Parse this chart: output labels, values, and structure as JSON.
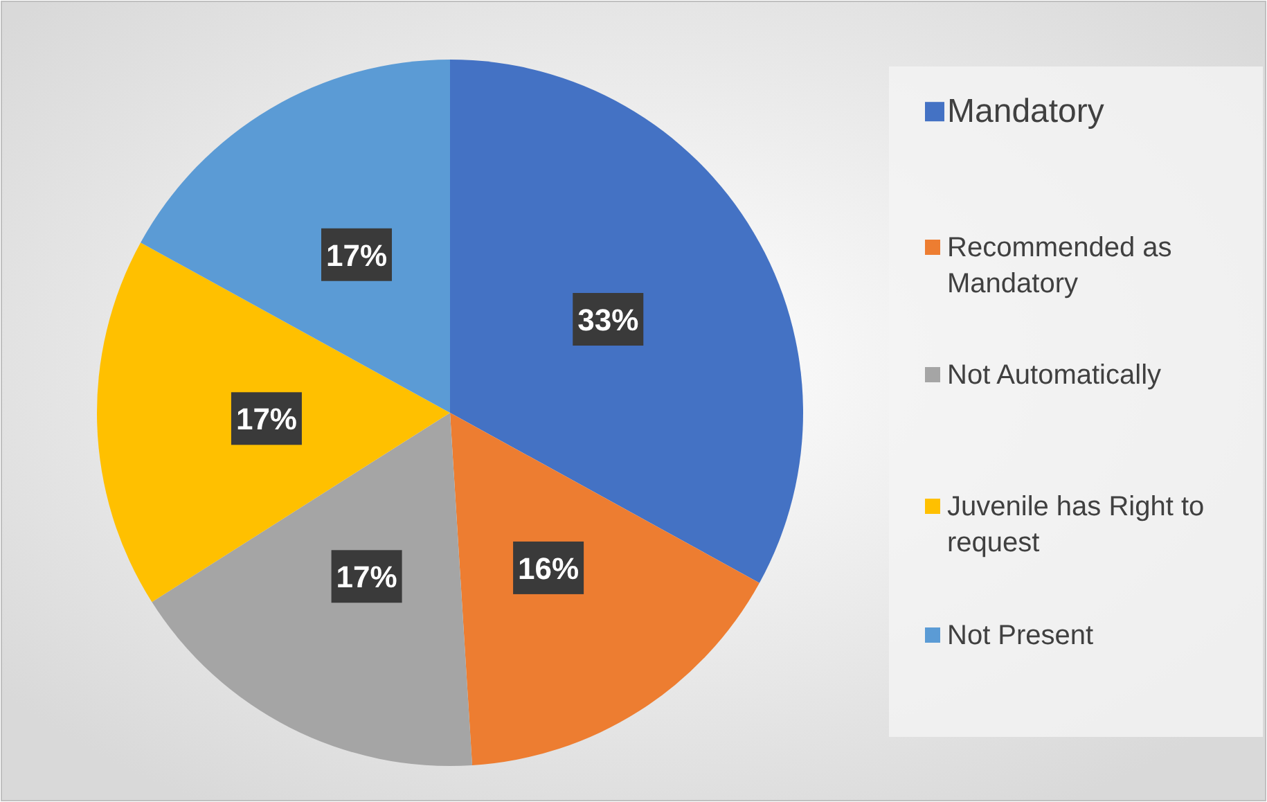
{
  "chart_data": {
    "type": "pie",
    "categories": [
      "Mandatory",
      "Recommended as Mandatory",
      "Not Automatically",
      "Juvenile has Right to request",
      "Not Present"
    ],
    "values": [
      33,
      16,
      17,
      17,
      17
    ],
    "colors": [
      "#4472c4",
      "#ed7d31",
      "#a5a5a5",
      "#ffc000",
      "#5b9bd5"
    ],
    "value_labels": [
      "33%",
      "16%",
      "17%",
      "17%",
      "17%"
    ],
    "legend": "right"
  }
}
